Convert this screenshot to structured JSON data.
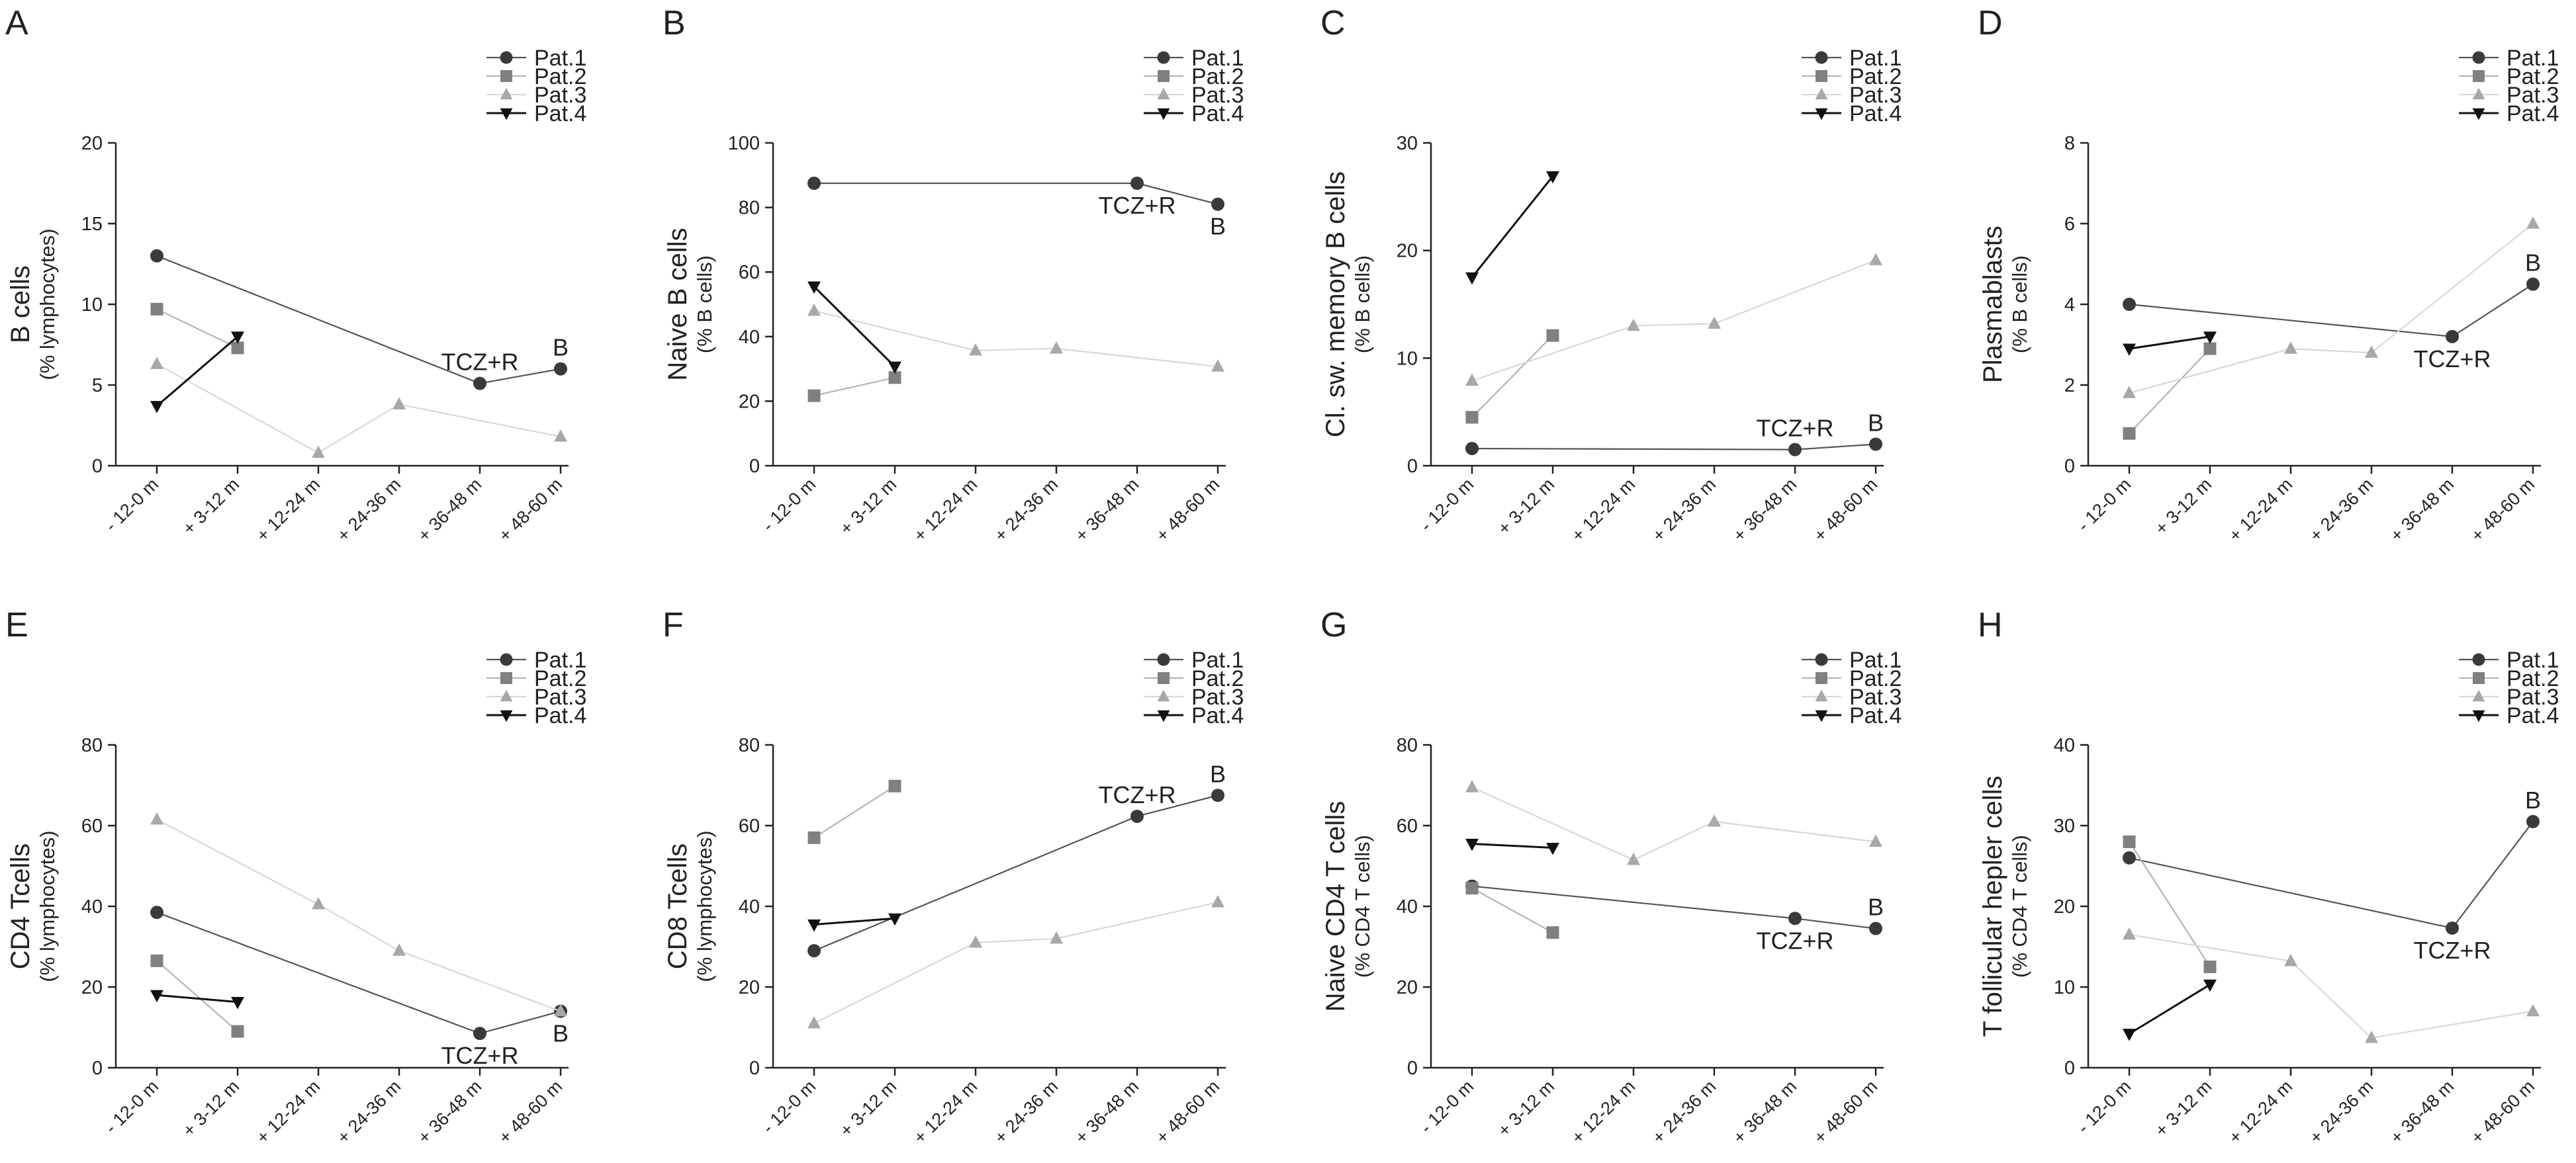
{
  "chart_data": {
    "type": "line",
    "categories": [
      "- 12-0 m",
      "+ 3-12 m",
      "+ 12-24 m",
      "+ 24-36 m",
      "+ 36-48 m",
      "+ 48-60 m"
    ],
    "legend": [
      "Pat.1",
      "Pat.2",
      "Pat.3",
      "Pat.4"
    ],
    "legend_placement": "top-right",
    "series_styles": [
      {
        "name": "Pat.1",
        "color": "#3a3a3a",
        "line": "#555555",
        "marker": "circle"
      },
      {
        "name": "Pat.2",
        "color": "#808080",
        "line": "#b4b4b4",
        "marker": "square"
      },
      {
        "name": "Pat.3",
        "color": "#a8a8a8",
        "line": "#d8d8d8",
        "marker": "triangle-up"
      },
      {
        "name": "Pat.4",
        "color": "#111111",
        "line": "#111111",
        "marker": "triangle-down"
      }
    ],
    "panels": [
      {
        "letter": "A",
        "ylabel": "B cells",
        "ylabel_sub": "(% lymphocytes)",
        "ylim": [
          0,
          20
        ],
        "yticks": [
          0,
          5,
          10,
          15,
          20
        ],
        "series": [
          {
            "name": "Pat.1",
            "values": [
              13.0,
              null,
              null,
              null,
              5.1,
              6.0
            ]
          },
          {
            "name": "Pat.2",
            "values": [
              9.7,
              7.3,
              null,
              null,
              null,
              null
            ]
          },
          {
            "name": "Pat.3",
            "values": [
              6.3,
              null,
              0.8,
              3.8,
              null,
              1.8
            ]
          },
          {
            "name": "Pat.4",
            "values": [
              3.7,
              8.0,
              null,
              null,
              null,
              null
            ]
          }
        ],
        "annotations": [
          {
            "text": "TCZ+R",
            "at": [
              4,
              5.1
            ],
            "pos": "above"
          },
          {
            "text": "B",
            "at": [
              5,
              6.0
            ],
            "pos": "above"
          }
        ]
      },
      {
        "letter": "B",
        "ylabel": "Naive B cells",
        "ylabel_sub": "(% B cells)",
        "ylim": [
          0,
          100
        ],
        "yticks": [
          0,
          20,
          40,
          60,
          80,
          100
        ],
        "series": [
          {
            "name": "Pat.1",
            "values": [
              87.5,
              null,
              null,
              null,
              87.5,
              81.0
            ]
          },
          {
            "name": "Pat.2",
            "values": [
              21.7,
              27.3,
              null,
              null,
              null,
              null
            ]
          },
          {
            "name": "Pat.3",
            "values": [
              48.0,
              null,
              35.7,
              36.3,
              null,
              30.7
            ]
          },
          {
            "name": "Pat.4",
            "values": [
              55.5,
              30.7,
              null,
              null,
              null,
              null
            ]
          }
        ],
        "annotations": [
          {
            "text": "TCZ+R",
            "at": [
              4,
              87.5
            ],
            "pos": "below"
          },
          {
            "text": "B",
            "at": [
              5,
              81.0
            ],
            "pos": "below"
          }
        ]
      },
      {
        "letter": "C",
        "ylabel": "Cl. sw. memory B cells",
        "ylabel_sub": "(% B cells)",
        "ylim": [
          0,
          30
        ],
        "yticks": [
          0,
          10,
          20,
          30
        ],
        "series": [
          {
            "name": "Pat.1",
            "values": [
              1.6,
              null,
              null,
              null,
              1.5,
              2.0
            ]
          },
          {
            "name": "Pat.2",
            "values": [
              4.5,
              12.1,
              null,
              null,
              null,
              null
            ]
          },
          {
            "name": "Pat.3",
            "values": [
              7.9,
              null,
              13.0,
              13.2,
              null,
              19.1
            ]
          },
          {
            "name": "Pat.4",
            "values": [
              17.5,
              26.9,
              null,
              null,
              null,
              null
            ]
          }
        ],
        "annotations": [
          {
            "text": "TCZ+R",
            "at": [
              4,
              1.5
            ],
            "pos": "above"
          },
          {
            "text": "B",
            "at": [
              5,
              2.0
            ],
            "pos": "above"
          }
        ]
      },
      {
        "letter": "D",
        "ylabel": "Plasmablasts",
        "ylabel_sub": "(% B cells)",
        "ylim": [
          0,
          8
        ],
        "yticks": [
          0,
          2,
          4,
          6,
          8
        ],
        "series": [
          {
            "name": "Pat.1",
            "values": [
              4.0,
              null,
              null,
              null,
              3.2,
              4.5
            ]
          },
          {
            "name": "Pat.2",
            "values": [
              0.8,
              2.9,
              null,
              null,
              null,
              null
            ]
          },
          {
            "name": "Pat.3",
            "values": [
              1.8,
              null,
              2.9,
              2.8,
              null,
              6.0
            ]
          },
          {
            "name": "Pat.4",
            "values": [
              2.9,
              3.2,
              null,
              null,
              null,
              null
            ]
          }
        ],
        "annotations": [
          {
            "text": "TCZ+R",
            "at": [
              4,
              3.2
            ],
            "pos": "below"
          },
          {
            "text": "B",
            "at": [
              5,
              4.5
            ],
            "pos": "above"
          }
        ]
      },
      {
        "letter": "E",
        "ylabel": "CD4 Tcells",
        "ylabel_sub": "(% lymphocytes)",
        "ylim": [
          0,
          80
        ],
        "yticks": [
          0,
          20,
          40,
          60,
          80
        ],
        "series": [
          {
            "name": "Pat.1",
            "values": [
              38.5,
              null,
              null,
              null,
              8.5,
              14.0
            ]
          },
          {
            "name": "Pat.2",
            "values": [
              26.5,
              9.0,
              null,
              null,
              null,
              null
            ]
          },
          {
            "name": "Pat.3",
            "values": [
              61.5,
              null,
              40.5,
              29.0,
              null,
              14.0
            ]
          },
          {
            "name": "Pat.4",
            "values": [
              18.0,
              16.3,
              null,
              null,
              null,
              null
            ]
          }
        ],
        "annotations": [
          {
            "text": "TCZ+R",
            "at": [
              4,
              8.5
            ],
            "pos": "below"
          },
          {
            "text": "B",
            "at": [
              5,
              14.0
            ],
            "pos": "below"
          }
        ]
      },
      {
        "letter": "F",
        "ylabel": "CD8 Tcells",
        "ylabel_sub": "(% lymphocytes)",
        "ylim": [
          0,
          80
        ],
        "yticks": [
          0,
          20,
          40,
          60,
          80
        ],
        "series": [
          {
            "name": "Pat.1",
            "values": [
              29.0,
              null,
              null,
              null,
              62.3,
              67.5
            ]
          },
          {
            "name": "Pat.2",
            "values": [
              57.0,
              69.8,
              null,
              null,
              null,
              null
            ]
          },
          {
            "name": "Pat.3",
            "values": [
              11.0,
              null,
              31.0,
              32.0,
              null,
              41.0
            ]
          },
          {
            "name": "Pat.4",
            "values": [
              35.5,
              37.0,
              null,
              null,
              null,
              null
            ]
          }
        ],
        "annotations": [
          {
            "text": "TCZ+R",
            "at": [
              4,
              62.3
            ],
            "pos": "above"
          },
          {
            "text": "B",
            "at": [
              5,
              67.5
            ],
            "pos": "above"
          }
        ]
      },
      {
        "letter": "G",
        "ylabel": "Naive CD4 T cells",
        "ylabel_sub": "(% CD4 T cells)",
        "ylim": [
          0,
          80
        ],
        "yticks": [
          0,
          20,
          40,
          60,
          80
        ],
        "series": [
          {
            "name": "Pat.1",
            "values": [
              45.0,
              null,
              null,
              null,
              37.0,
              34.5
            ]
          },
          {
            "name": "Pat.2",
            "values": [
              44.5,
              33.5,
              null,
              null,
              null,
              null
            ]
          },
          {
            "name": "Pat.3",
            "values": [
              69.5,
              null,
              51.5,
              61.0,
              null,
              56.0
            ]
          },
          {
            "name": "Pat.4",
            "values": [
              55.5,
              54.5,
              null,
              null,
              null,
              null
            ]
          }
        ],
        "annotations": [
          {
            "text": "TCZ+R",
            "at": [
              4,
              37.0
            ],
            "pos": "below"
          },
          {
            "text": "B",
            "at": [
              5,
              34.5
            ],
            "pos": "above"
          }
        ]
      },
      {
        "letter": "H",
        "ylabel": "T follicular hepler cells",
        "ylabel_sub": "(% CD4 T cells)",
        "ylim": [
          0,
          40
        ],
        "yticks": [
          0,
          10,
          20,
          30,
          40
        ],
        "series": [
          {
            "name": "Pat.1",
            "values": [
              26.0,
              null,
              null,
              null,
              17.3,
              30.5
            ]
          },
          {
            "name": "Pat.2",
            "values": [
              28.0,
              12.5,
              null,
              null,
              null,
              null
            ]
          },
          {
            "name": "Pat.3",
            "values": [
              16.5,
              null,
              13.2,
              3.7,
              null,
              7.0
            ]
          },
          {
            "name": "Pat.4",
            "values": [
              4.2,
              10.3,
              null,
              null,
              null,
              null
            ]
          }
        ],
        "annotations": [
          {
            "text": "TCZ+R",
            "at": [
              4,
              17.3
            ],
            "pos": "below"
          },
          {
            "text": "B",
            "at": [
              5,
              30.5
            ],
            "pos": "above"
          }
        ]
      }
    ]
  }
}
